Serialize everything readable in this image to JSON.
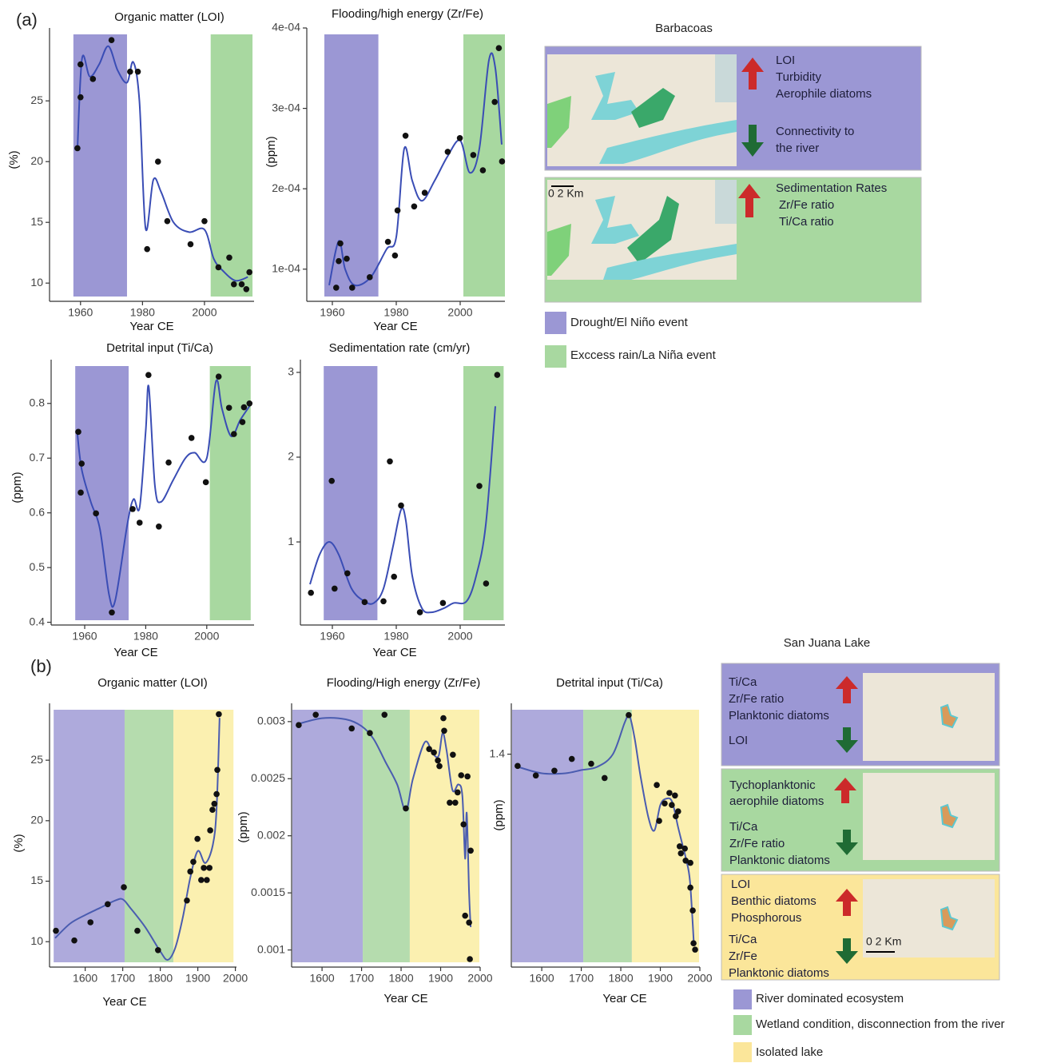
{
  "chart_data": [
    {
      "type": "scatter",
      "title": "Organic matter (LOI)",
      "x_label": "Year CE",
      "y_label": "(%)",
      "xlim": [
        1950,
        2016
      ],
      "ylim": [
        8.5,
        31
      ],
      "xticks": [
        1960,
        1980,
        2000
      ],
      "yticks": [
        10,
        15,
        20,
        25
      ],
      "bands": [
        {
          "range": [
            1957.7,
            1975
          ],
          "color": "#9b97d4"
        },
        {
          "range": [
            2002,
            2015.5
          ],
          "color": "#a8d8a0"
        }
      ],
      "x": [
        1959,
        1960,
        1960,
        1964,
        1970,
        1976,
        1978.5,
        1981.5,
        1985,
        1988,
        1995.5,
        2000,
        2004.5,
        2008,
        2009.5,
        2012,
        2013.5,
        2014.5
      ],
      "values": [
        21.1,
        28,
        25.3,
        26.8,
        30,
        27.4,
        27.4,
        12.8,
        20,
        15.1,
        13.2,
        15.1,
        11.3,
        12.1,
        9.9,
        9.9,
        9.5,
        10.9
      ],
      "fit": {
        "color": "#3a4db5",
        "x": [
          1959,
          1960.5,
          1963,
          1966,
          1969,
          1972,
          1975,
          1977,
          1979,
          1981,
          1983.5,
          1986,
          1990,
          1995,
          2000,
          2003,
          2006,
          2010,
          2014
        ],
        "values": [
          21,
          28.5,
          27,
          28,
          29.5,
          27.5,
          26.5,
          28.2,
          25,
          14.5,
          18.5,
          17.5,
          15,
          14.2,
          14.4,
          12,
          11,
          10.2,
          10.5
        ]
      }
    },
    {
      "type": "scatter",
      "title": "Flooding/high energy  (Zr/Fe)",
      "x_label": "Year CE",
      "y_label": "(ppm)",
      "xlim": [
        1952,
        2014
      ],
      "ylim": [
        6e-05,
        0.0004
      ],
      "xticks": [
        1960,
        1980,
        2000
      ],
      "yticks": [
        {
          "value": 0.0001,
          "label": "1e-04"
        },
        {
          "value": 0.0002,
          "label": "2e-04"
        },
        {
          "value": 0.0003,
          "label": "3e-04"
        },
        {
          "value": 0.0004,
          "label": "4e-04"
        }
      ],
      "bands": [
        {
          "range": [
            1957.5,
            1974.4
          ],
          "color": "#9b97d4"
        },
        {
          "range": [
            2001,
            2014
          ],
          "color": "#a8d8a0"
        }
      ],
      "x": [
        1961.2,
        1962,
        1962.5,
        1964.5,
        1966.2,
        1971.7,
        1977.4,
        1979.6,
        1980.4,
        1982.9,
        1985.6,
        1988.9,
        1996.1,
        1999.9,
        2004.1,
        2007.1,
        2010.8,
        2012.1,
        2013.1
      ],
      "values": [
        7.7e-05,
        0.00011,
        0.000132,
        0.000113,
        7.7e-05,
        9e-05,
        0.000134,
        0.000117,
        0.000173,
        0.000266,
        0.000178,
        0.000195,
        0.000246,
        0.000263,
        0.000242,
        0.000223,
        0.000308,
        0.000375,
        0.000234
      ],
      "fit": {
        "color": "#3a4db5",
        "x": [
          1959,
          1962,
          1964,
          1967,
          1972,
          1977,
          1980,
          1982.5,
          1985,
          1988,
          1992,
          1996,
          2000,
          2003,
          2006,
          2009,
          2011,
          2013
        ],
        "values": [
          8e-05,
          0.000135,
          0.0001,
          8e-05,
          9e-05,
          0.000125,
          0.00014,
          0.00025,
          0.00021,
          0.000185,
          0.00021,
          0.00024,
          0.00026,
          0.00022,
          0.00025,
          0.00036,
          0.00035,
          0.000255
        ]
      }
    },
    {
      "type": "scatter",
      "title": "Detrital input (Ti/Ca)",
      "x_label": "Year CE",
      "y_label": "(ppm)",
      "xlim": [
        1949,
        2015.5
      ],
      "ylim": [
        0.395,
        0.88
      ],
      "xticks": [
        1960,
        1980,
        2000
      ],
      "yticks": [
        0.4,
        0.5,
        0.6,
        0.7,
        0.8
      ],
      "bands": [
        {
          "range": [
            1956.9,
            1974.4
          ],
          "color": "#9b97d4"
        },
        {
          "range": [
            2001,
            2014.4
          ],
          "color": "#a8d8a0"
        }
      ],
      "x": [
        1957.9,
        1959,
        1958.7,
        1963.7,
        1968.9,
        1975.7,
        1978,
        1980.9,
        1984.3,
        1987.5,
        1995,
        1999.7,
        2003.9,
        2007.3,
        2008.9,
        2011.7,
        2012.2,
        2014
      ],
      "values": [
        0.748,
        0.69,
        0.637,
        0.599,
        0.418,
        0.607,
        0.582,
        0.852,
        0.575,
        0.692,
        0.737,
        0.656,
        0.849,
        0.792,
        0.744,
        0.766,
        0.793,
        0.8
      ],
      "fit": {
        "color": "#3a4db5",
        "x": [
          1957.5,
          1959,
          1962,
          1965,
          1968,
          1970,
          1974,
          1976,
          1978,
          1980,
          1981,
          1983,
          1985,
          1989,
          1993,
          1996,
          2000,
          2003,
          2005,
          2008,
          2011,
          2014
        ],
        "values": [
          0.75,
          0.68,
          0.62,
          0.57,
          0.45,
          0.44,
          0.58,
          0.625,
          0.61,
          0.75,
          0.83,
          0.65,
          0.62,
          0.66,
          0.7,
          0.71,
          0.7,
          0.84,
          0.79,
          0.74,
          0.77,
          0.795
        ]
      }
    },
    {
      "type": "scatter",
      "title": "Sedimentation rate (cm/yr)",
      "x_label": "Year CE",
      "xlim": [
        1950,
        2014
      ],
      "ylim": [
        0.02,
        3.15
      ],
      "xticks": [
        1960,
        1980,
        2000
      ],
      "yticks": [
        1,
        2,
        3
      ],
      "bands": [
        {
          "range": [
            1957.3,
            1974.1
          ],
          "color": "#9b97d4"
        },
        {
          "range": [
            2001,
            2013.6
          ],
          "color": "#a8d8a0"
        }
      ],
      "x": [
        1953.3,
        1959.8,
        1960.7,
        1964.7,
        1970.1,
        1976,
        1978,
        1979.3,
        1981.5,
        1987.4,
        1994.6,
        2006,
        2008.1,
        2011.6
      ],
      "values": [
        0.4,
        1.72,
        0.45,
        0.63,
        0.29,
        0.3,
        1.95,
        0.59,
        1.43,
        0.17,
        0.28,
        1.66,
        0.51,
        2.97
      ],
      "fit": {
        "color": "#3a4db5",
        "x": [
          1953,
          1956,
          1959,
          1962,
          1966,
          1970,
          1973,
          1976,
          1979,
          1981.5,
          1983,
          1985,
          1988,
          1991,
          1995,
          1998,
          2002,
          2005,
          2008,
          2011
        ],
        "values": [
          0.5,
          0.85,
          1.0,
          0.85,
          0.45,
          0.3,
          0.28,
          0.45,
          0.95,
          1.38,
          1.25,
          0.6,
          0.22,
          0.17,
          0.22,
          0.28,
          0.3,
          0.6,
          1.2,
          2.6
        ]
      }
    },
    {
      "type": "scatter",
      "title": "Organic matter (LOI)",
      "x_label": "Year CE",
      "y_label": "(%)",
      "xlim": [
        1505,
        2003
      ],
      "ylim": [
        7.9,
        29.7
      ],
      "xticks": [
        1600,
        1700,
        1800,
        1900,
        2000
      ],
      "yticks": [
        10,
        15,
        20,
        25
      ],
      "bands": [
        {
          "range": [
            1516,
            1705
          ],
          "color": "#aeaadc"
        },
        {
          "range": [
            1705,
            1835
          ],
          "color": "#b5dcae"
        },
        {
          "range": [
            1835,
            1995
          ],
          "color": "#fbf0b0"
        }
      ],
      "x": [
        1522,
        1571,
        1614,
        1660,
        1703,
        1739,
        1794,
        1871,
        1880,
        1888,
        1899,
        1909,
        1916,
        1924,
        1931,
        1933,
        1939,
        1944,
        1950,
        1952,
        1956
      ],
      "values": [
        10.9,
        10.1,
        11.6,
        13.1,
        14.5,
        10.9,
        9.3,
        13.4,
        15.8,
        16.6,
        18.5,
        15.1,
        16.1,
        15.1,
        16.1,
        19.2,
        20.9,
        21.4,
        22.2,
        24.2,
        28.8
      ],
      "fit": {
        "color": "#4a5cb0",
        "x": [
          1520,
          1560,
          1600,
          1640,
          1680,
          1700,
          1720,
          1760,
          1800,
          1820,
          1840,
          1860,
          1880,
          1900,
          1920,
          1940,
          1950,
          1958
        ],
        "values": [
          10.3,
          11.5,
          12.2,
          12.8,
          13.4,
          13.5,
          12.8,
          11.2,
          9.2,
          8.5,
          9.5,
          12,
          15.3,
          17.5,
          16.5,
          18,
          21,
          28.5
        ]
      }
    },
    {
      "type": "scatter",
      "title": "Flooding/High energy  (Zr/Fe)",
      "x_label": "Year CE",
      "y_label": "(ppm)",
      "xlim": [
        1523,
        2000
      ],
      "ylim": [
        0.00085,
        0.00316
      ],
      "xticks": [
        1600,
        1700,
        1800,
        1900,
        2000
      ],
      "yticks": [
        0.001,
        0.0015,
        0.002,
        0.0025,
        0.003
      ],
      "bands": [
        {
          "range": [
            1525,
            1703
          ],
          "color": "#aeaadc"
        },
        {
          "range": [
            1703,
            1822
          ],
          "color": "#b5dcae"
        },
        {
          "range": [
            1822,
            1998
          ],
          "color": "#fbf0b0"
        }
      ],
      "x": [
        1541,
        1584,
        1675,
        1721,
        1758,
        1812,
        1871,
        1883,
        1893,
        1897,
        1907,
        1909,
        1923,
        1931,
        1937,
        1943,
        1952,
        1958,
        1962,
        1968,
        1972,
        1974,
        1976
      ],
      "values": [
        0.00297,
        0.00306,
        0.00294,
        0.0029,
        0.00306,
        0.00224,
        0.00276,
        0.00273,
        0.00266,
        0.00261,
        0.00303,
        0.00292,
        0.00229,
        0.00271,
        0.00229,
        0.00238,
        0.00253,
        0.0021,
        0.0013,
        0.00252,
        0.00124,
        0.00092,
        0.00187
      ],
      "fit": {
        "color": "#4a5cb0",
        "x": [
          1540,
          1600,
          1660,
          1700,
          1730,
          1760,
          1790,
          1812,
          1830,
          1860,
          1880,
          1895,
          1905,
          1915,
          1930,
          1945,
          1955,
          1962,
          1966,
          1972,
          1976
        ],
        "values": [
          0.00298,
          0.00303,
          0.00302,
          0.00296,
          0.00285,
          0.00265,
          0.00245,
          0.00222,
          0.0025,
          0.00282,
          0.00272,
          0.0027,
          0.0029,
          0.00275,
          0.0024,
          0.00245,
          0.00235,
          0.0018,
          0.0022,
          0.0015,
          0.0012
        ]
      }
    },
    {
      "type": "scatter",
      "title": "Detrital input (Ti/Ca)",
      "x_label": "Year CE",
      "y_label": "(ppm)",
      "xlim": [
        1523,
        2000
      ],
      "ylim": [
        0.73,
        1.56
      ],
      "xticks": [
        1600,
        1700,
        1800,
        1900,
        2000
      ],
      "yticks": [
        1.4
      ],
      "bands": [
        {
          "range": [
            1525,
            1705
          ],
          "color": "#aeaadc"
        },
        {
          "range": [
            1705,
            1828
          ],
          "color": "#b5dcae"
        },
        {
          "range": [
            1828,
            1998
          ],
          "color": "#fbf0b0"
        }
      ],
      "x": [
        1539,
        1585,
        1632,
        1676,
        1725,
        1759,
        1820,
        1891,
        1897,
        1911,
        1923,
        1929,
        1937,
        1939,
        1945,
        1949,
        1952,
        1962,
        1964,
        1976,
        1976,
        1982,
        1984,
        1988
      ],
      "values": [
        1.363,
        1.333,
        1.348,
        1.385,
        1.37,
        1.325,
        1.523,
        1.303,
        1.19,
        1.245,
        1.278,
        1.24,
        1.27,
        1.205,
        1.22,
        1.11,
        1.088,
        1.103,
        1.065,
        1.058,
        0.98,
        0.908,
        0.805,
        0.785
      ],
      "fit": {
        "color": "#4a5cb0",
        "x": [
          1540,
          1600,
          1660,
          1700,
          1740,
          1780,
          1810,
          1822,
          1835,
          1850,
          1870,
          1885,
          1900,
          1915,
          1930,
          1945,
          1955,
          1965,
          1975,
          1985
        ],
        "values": [
          1.36,
          1.34,
          1.34,
          1.35,
          1.36,
          1.4,
          1.5,
          1.52,
          1.45,
          1.33,
          1.2,
          1.16,
          1.24,
          1.26,
          1.25,
          1.17,
          1.12,
          1.07,
          1.0,
          0.8
        ]
      }
    }
  ],
  "panel_labels": {
    "a": "(a)",
    "b": "(b)"
  },
  "barbacoas": {
    "title": "Barbacoas",
    "drought_box": {
      "up": [
        "LOI",
        "Turbidity",
        "Aerophile diatoms"
      ],
      "down": [
        "Connectivity to",
        "the river"
      ]
    },
    "rain_box": {
      "scale": "0  2 Km",
      "up": [
        "Sedimentation Rates",
        "Zr/Fe ratio",
        "Ti/Ca ratio"
      ]
    },
    "legend": [
      "Drought/El Niño event",
      "Exccess rain/La Niña event"
    ]
  },
  "san_juana": {
    "title": "San Juana Lake",
    "river_box": {
      "up": [
        "Ti/Ca",
        "Zr/Fe ratio",
        "Planktonic diatoms"
      ],
      "down": [
        "LOI"
      ]
    },
    "wetland_box": {
      "up": [
        "Tychoplanktonic",
        "aerophile diatoms"
      ],
      "down": [
        "Ti/Ca",
        "Zr/Fe ratio",
        "Planktonic diatoms"
      ]
    },
    "isolated_box": {
      "scale": "0    2 Km",
      "up": [
        "LOI",
        "Benthic diatoms",
        "Phosphorous"
      ],
      "down": [
        "Ti/Ca",
        "Zr/Fe",
        "Planktonic diatoms"
      ]
    },
    "legend": [
      "River dominated ecosystem",
      "Wetland condition, disconnection from the river",
      "Isolated lake"
    ]
  }
}
